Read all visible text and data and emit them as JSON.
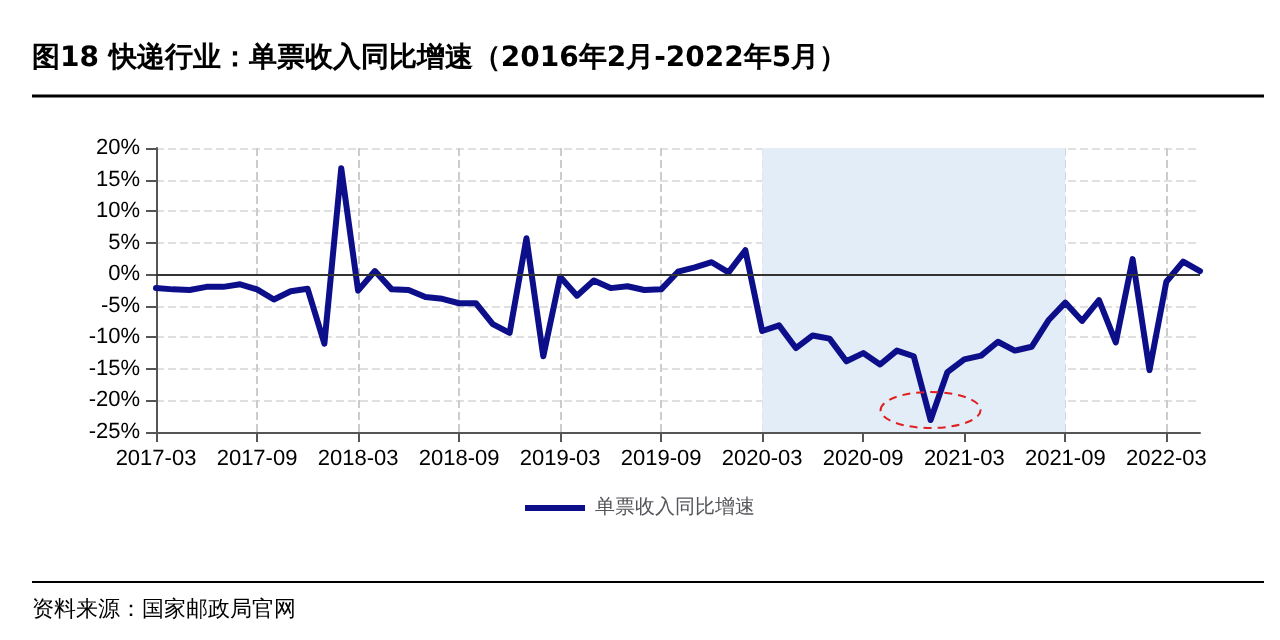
{
  "chart_data": {
    "type": "line",
    "title": "图18 快递行业：单票收入同比增速（2016年2月-2022年5月）",
    "categories": [
      "2017-03",
      null,
      null,
      null,
      null,
      null,
      "2017-09",
      null,
      null,
      null,
      null,
      null,
      "2018-03",
      null,
      null,
      null,
      null,
      null,
      "2018-09",
      null,
      null,
      null,
      null,
      null,
      "2019-03",
      null,
      null,
      null,
      null,
      null,
      "2019-09",
      null,
      null,
      null,
      null,
      null,
      "2020-03",
      null,
      null,
      null,
      null,
      null,
      "2020-09",
      null,
      null,
      null,
      null,
      null,
      "2021-03",
      null,
      null,
      null,
      null,
      null,
      "2021-09",
      null,
      null,
      null,
      null,
      null,
      "2022-03",
      null,
      null
    ],
    "series": [
      {
        "name": "单票收入同比增速",
        "color": "#0d0f8a",
        "values": [
          -2.2,
          -2.4,
          -2.5,
          -2.0,
          -2.0,
          -1.6,
          -2.4,
          -4.0,
          -2.7,
          -2.3,
          -11.0,
          16.8,
          -2.6,
          0.5,
          -2.4,
          -2.5,
          -3.6,
          -3.9,
          -4.6,
          -4.6,
          -7.9,
          -9.3,
          5.7,
          -13.0,
          -0.4,
          -3.4,
          -1.0,
          -2.2,
          -1.9,
          -2.5,
          -2.4,
          0.4,
          1.1,
          1.9,
          0.3,
          3.8,
          -9.0,
          -8.1,
          -11.7,
          -9.7,
          -10.2,
          -13.8,
          -12.5,
          -14.3,
          -12.1,
          -13.0,
          -23.1,
          -15.5,
          -13.5,
          -12.9,
          -10.7,
          -12.1,
          -11.5,
          -7.3,
          -4.5,
          -7.4,
          -4.1,
          -10.8,
          2.4,
          -15.2,
          -1.2,
          2.0,
          0.5
        ]
      }
    ],
    "ylim": [
      -25,
      20
    ],
    "yticks": [
      {
        "value": -25,
        "label": "-25%"
      },
      {
        "value": -20,
        "label": "-20%"
      },
      {
        "value": -15,
        "label": "-15%"
      },
      {
        "value": -10,
        "label": "-10%"
      },
      {
        "value": -5,
        "label": "-5%"
      },
      {
        "value": 0,
        "label": "0%"
      },
      {
        "value": 5,
        "label": "5%"
      },
      {
        "value": 10,
        "label": "10%"
      },
      {
        "value": 15,
        "label": "15%"
      },
      {
        "value": 20,
        "label": "20%"
      }
    ],
    "bands": [
      {
        "axis": "x",
        "from": "2020-03",
        "to": "2021-09",
        "color": "#e3edf8"
      }
    ],
    "annotations": [
      "资料来源：国家邮政局官网"
    ],
    "grid": true,
    "legend": "bottom",
    "marker": "none",
    "line_style": "solid"
  }
}
